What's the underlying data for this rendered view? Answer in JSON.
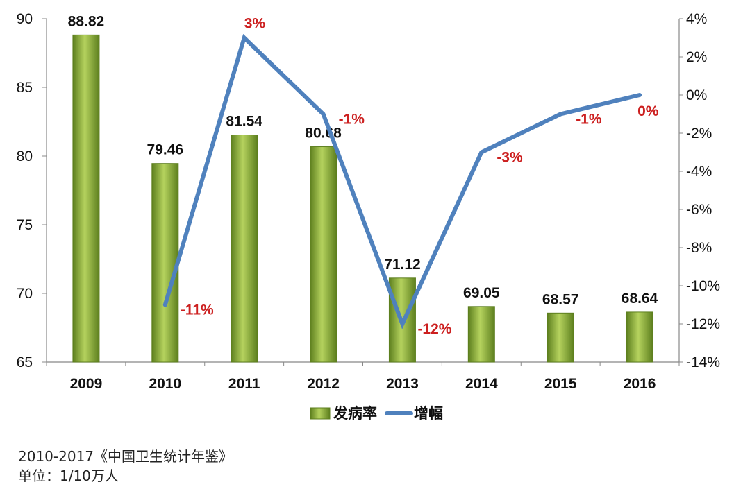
{
  "chart_data": {
    "type": "bar",
    "categories": [
      "2009",
      "2010",
      "2011",
      "2012",
      "2013",
      "2014",
      "2015",
      "2016"
    ],
    "series": [
      {
        "name": "发病率",
        "type": "bar",
        "axis": "left",
        "values": [
          88.82,
          79.46,
          81.54,
          80.68,
          71.12,
          69.05,
          68.57,
          68.64
        ],
        "labels": [
          "88.82",
          "79.46",
          "81.54",
          "80.68",
          "71.12",
          "69.05",
          "68.57",
          "68.64"
        ]
      },
      {
        "name": "增幅",
        "type": "line",
        "axis": "right",
        "values": [
          null,
          -11,
          3,
          -1,
          -12,
          -3,
          -1,
          0
        ],
        "labels": [
          "",
          "-11%",
          "3%",
          "-1%",
          "-12%",
          "-3%",
          "-1%",
          "0%"
        ]
      }
    ],
    "y_left": {
      "min": 65,
      "max": 90,
      "ticks": [
        "65",
        "70",
        "75",
        "80",
        "85",
        "90"
      ]
    },
    "y_right": {
      "min": -14,
      "max": 4,
      "ticks": [
        "-14%",
        "-12%",
        "-10%",
        "-8%",
        "-6%",
        "-4%",
        "-2%",
        "0%",
        "2%",
        "4%"
      ]
    },
    "legend_position": "bottom",
    "grid": false,
    "colors": {
      "bar": "#8cb23a",
      "bar_light": "#b5d25e",
      "bar_dark": "#5d7f1e",
      "line": "#4f81bd",
      "pct_label": "#cc1f1f"
    }
  },
  "legend": [
    {
      "label": "发病率",
      "kind": "bar"
    },
    {
      "label": "增幅",
      "kind": "line"
    }
  ],
  "notes": {
    "source": "2010-2017《中国卫生统计年鉴》",
    "unit": "单位：1/10万人"
  }
}
